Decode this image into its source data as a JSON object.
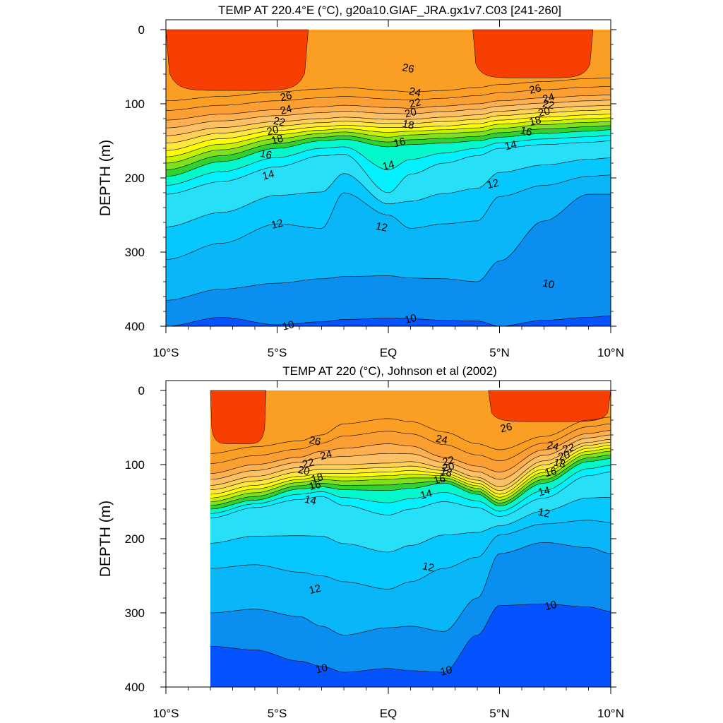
{
  "chart_data": [
    {
      "type": "contour",
      "title": "TEMP AT 220.4°E (°C), g20a10.GIAF_JRA.gx1v7.C03 [241-260]",
      "ylabel": "DEPTH (m)",
      "xlim": [
        -10,
        10
      ],
      "ylim": [
        0,
        400
      ],
      "y_inverted": true,
      "x_ticks": [
        -10,
        -5,
        0,
        5,
        10
      ],
      "x_tick_labels": [
        "10°S",
        "5°S",
        "EQ",
        "5°N",
        "10°N"
      ],
      "y_ticks": [
        0,
        100,
        200,
        300,
        400
      ],
      "y_tick_labels": [
        "0",
        "100",
        "200",
        "300",
        "400"
      ],
      "contour_interval": 1,
      "data_xrange": [
        -10,
        10
      ],
      "x": [
        -10,
        -7.5,
        -5,
        -3,
        -2,
        0,
        1,
        2.5,
        4,
        5,
        7,
        9,
        10
      ],
      "z_depths": {
        "10": [
          400,
          388,
          398,
          394,
          391,
          389,
          390,
          392,
          393,
          400,
          392,
          388,
          386
        ],
        "11": [
          365,
          350,
          342,
          336,
          333,
          332,
          335,
          336,
          340,
          312,
          258,
          222,
          222
        ],
        "12": [
          310,
          288,
          262,
          268,
          220,
          250,
          268,
          262,
          258,
          225,
          210,
          198,
          196
        ],
        "14": [
          222,
          205,
          185,
          170,
          168,
          220,
          195,
          180,
          170,
          160,
          155,
          152,
          150
        ],
        "16": [
          198,
          178,
          160,
          150,
          148,
          158,
          155,
          153,
          150,
          145,
          140,
          137,
          135
        ],
        "18": [
          180,
          162,
          147,
          140,
          138,
          145,
          142,
          140,
          138,
          133,
          128,
          125,
          124
        ],
        "20": [
          163,
          147,
          136,
          131,
          129,
          132,
          132,
          130,
          127,
          122,
          118,
          115,
          114
        ],
        "22": [
          143,
          132,
          124,
          120,
          118,
          121,
          121,
          118,
          115,
          110,
          106,
          103,
          102
        ],
        "24": [
          122,
          114,
          108,
          104,
          102,
          105,
          106,
          103,
          100,
          96,
          92,
          89,
          88
        ],
        "26": [
          96,
          90,
          84,
          80,
          78,
          82,
          84,
          82,
          78,
          74,
          70,
          66,
          65
        ]
      },
      "warm_pool_27": [
        {
          "x_range": [
            -10,
            -3.6
          ],
          "bottom": 82
        },
        {
          "x_range": [
            3.8,
            9.2
          ],
          "bottom": 65
        }
      ],
      "contour_labels": [
        {
          "text": "26",
          "x": 0.9,
          "d": 52
        },
        {
          "text": "26",
          "x": -4.6,
          "d": 90
        },
        {
          "text": "24",
          "x": -4.6,
          "d": 108
        },
        {
          "text": "22",
          "x": -4.9,
          "d": 124
        },
        {
          "text": "20",
          "x": -5.2,
          "d": 136
        },
        {
          "text": "18",
          "x": -5.0,
          "d": 148
        },
        {
          "text": "16",
          "x": -5.5,
          "d": 168
        },
        {
          "text": "14",
          "x": -5.4,
          "d": 196
        },
        {
          "text": "12",
          "x": -5.0,
          "d": 262
        },
        {
          "text": "24",
          "x": 1.2,
          "d": 84
        },
        {
          "text": "22",
          "x": 1.2,
          "d": 99
        },
        {
          "text": "20",
          "x": 1.0,
          "d": 112
        },
        {
          "text": "18",
          "x": 0.9,
          "d": 128
        },
        {
          "text": "16",
          "x": 0.5,
          "d": 152
        },
        {
          "text": "14",
          "x": 0.0,
          "d": 183
        },
        {
          "text": "12",
          "x": -0.3,
          "d": 266
        },
        {
          "text": "26",
          "x": 6.6,
          "d": 80
        },
        {
          "text": "24",
          "x": 7.2,
          "d": 92
        },
        {
          "text": "22",
          "x": 7.2,
          "d": 101
        },
        {
          "text": "20",
          "x": 7.0,
          "d": 111
        },
        {
          "text": "18",
          "x": 6.6,
          "d": 123
        },
        {
          "text": "16",
          "x": 6.2,
          "d": 137
        },
        {
          "text": "14",
          "x": 5.5,
          "d": 156
        },
        {
          "text": "12",
          "x": 4.7,
          "d": 208
        },
        {
          "text": "10",
          "x": 7.2,
          "d": 343
        },
        {
          "text": "10",
          "x": 1.0,
          "d": 390
        },
        {
          "text": "10",
          "x": -4.5,
          "d": 399
        }
      ]
    },
    {
      "type": "contour",
      "title": "TEMP AT 220 (°C), Johnson et al (2002)",
      "ylabel": "DEPTH (m)",
      "xlim": [
        -10,
        10
      ],
      "ylim": [
        0,
        400
      ],
      "y_inverted": true,
      "x_ticks": [
        -10,
        -5,
        0,
        5,
        10
      ],
      "x_tick_labels": [
        "10°S",
        "5°S",
        "EQ",
        "5°N",
        "10°N"
      ],
      "y_ticks": [
        0,
        100,
        200,
        300,
        400
      ],
      "y_tick_labels": [
        "0",
        "100",
        "200",
        "300",
        "400"
      ],
      "contour_interval": 1,
      "data_xrange": [
        -8,
        10
      ],
      "x": [
        -8,
        -6,
        -4,
        -3,
        -2,
        0,
        1,
        2.5,
        4,
        5,
        7,
        9,
        10
      ],
      "z_depths": {
        "10": [
          345,
          350,
          365,
          372,
          380,
          375,
          378,
          380,
          330,
          290,
          288,
          292,
          298
        ],
        "11": [
          300,
          295,
          305,
          318,
          330,
          320,
          318,
          325,
          280,
          220,
          205,
          212,
          220
        ],
        "12": [
          240,
          235,
          245,
          250,
          258,
          268,
          258,
          240,
          225,
          195,
          180,
          175,
          178
        ],
        "14": [
          172,
          158,
          147,
          143,
          155,
          168,
          160,
          150,
          158,
          170,
          145,
          115,
          110
        ],
        "16": [
          160,
          148,
          133,
          130,
          134,
          135,
          132,
          125,
          140,
          156,
          125,
          96,
          92
        ],
        "18": [
          150,
          138,
          124,
          120,
          122,
          120,
          118,
          118,
          132,
          148,
          115,
          86,
          82
        ],
        "20": [
          140,
          128,
          116,
          112,
          112,
          110,
          108,
          112,
          125,
          140,
          106,
          78,
          74
        ],
        "22": [
          128,
          116,
          104,
          100,
          100,
          98,
          96,
          104,
          117,
          130,
          95,
          70,
          66
        ],
        "24": [
          112,
          100,
          90,
          82,
          78,
          72,
          75,
          90,
          102,
          110,
          80,
          58,
          54
        ],
        "26": [
          85,
          76,
          68,
          60,
          45,
          38,
          42,
          56,
          72,
          80,
          62,
          40,
          36
        ]
      },
      "warm_pool_27": [
        {
          "x_range": [
            -8,
            -5.5
          ],
          "bottom": 72
        },
        {
          "x_range": [
            4.5,
            10
          ],
          "bottom": 42
        }
      ],
      "contour_labels": [
        {
          "text": "26",
          "x": -3.3,
          "d": 68
        },
        {
          "text": "24",
          "x": -2.8,
          "d": 87
        },
        {
          "text": "22",
          "x": -3.6,
          "d": 98
        },
        {
          "text": "20",
          "x": -3.8,
          "d": 108
        },
        {
          "text": "18",
          "x": -3.2,
          "d": 118
        },
        {
          "text": "16",
          "x": -3.3,
          "d": 128
        },
        {
          "text": "14",
          "x": -3.5,
          "d": 148
        },
        {
          "text": "12",
          "x": -3.3,
          "d": 268
        },
        {
          "text": "10",
          "x": -3.0,
          "d": 375
        },
        {
          "text": "24",
          "x": 2.4,
          "d": 66
        },
        {
          "text": "22",
          "x": 2.7,
          "d": 95
        },
        {
          "text": "20",
          "x": 2.7,
          "d": 103
        },
        {
          "text": "18",
          "x": 2.6,
          "d": 110
        },
        {
          "text": "16",
          "x": 2.3,
          "d": 120
        },
        {
          "text": "14",
          "x": 1.7,
          "d": 140
        },
        {
          "text": "12",
          "x": 1.8,
          "d": 238
        },
        {
          "text": "10",
          "x": 2.6,
          "d": 378
        },
        {
          "text": "26",
          "x": 5.3,
          "d": 50
        },
        {
          "text": "24",
          "x": 7.4,
          "d": 75
        },
        {
          "text": "22",
          "x": 8.1,
          "d": 78
        },
        {
          "text": "20",
          "x": 7.9,
          "d": 88
        },
        {
          "text": "18",
          "x": 7.7,
          "d": 98
        },
        {
          "text": "16",
          "x": 7.3,
          "d": 110
        },
        {
          "text": "14",
          "x": 7.0,
          "d": 136
        },
        {
          "text": "12",
          "x": 7.0,
          "d": 165
        },
        {
          "text": "10",
          "x": 7.3,
          "d": 290
        }
      ]
    }
  ],
  "colors": {
    "t_lt_10": "#0553ff",
    "t_10_11": "#0a8ff0",
    "t_11_12": "#09b6f8",
    "t_12_13": "#06c8fe",
    "t_13_14": "#27e0f7",
    "t_14_15": "#04f0ff",
    "t_15_16": "#04f8cc",
    "t_16_17": "#30d22f",
    "t_17_18": "#7fe11e",
    "t_18_19": "#c5f200",
    "t_19_20": "#fffd05",
    "t_20_21": "#ffe83e",
    "t_21_22": "#ffd054",
    "t_22_23": "#fdc064",
    "t_23_24": "#feaf50",
    "t_24_25": "#fc9f33",
    "t_25_26": "#fa9e24",
    "t_26_27": "#f28206",
    "t_ge_27": "#f73e03"
  }
}
